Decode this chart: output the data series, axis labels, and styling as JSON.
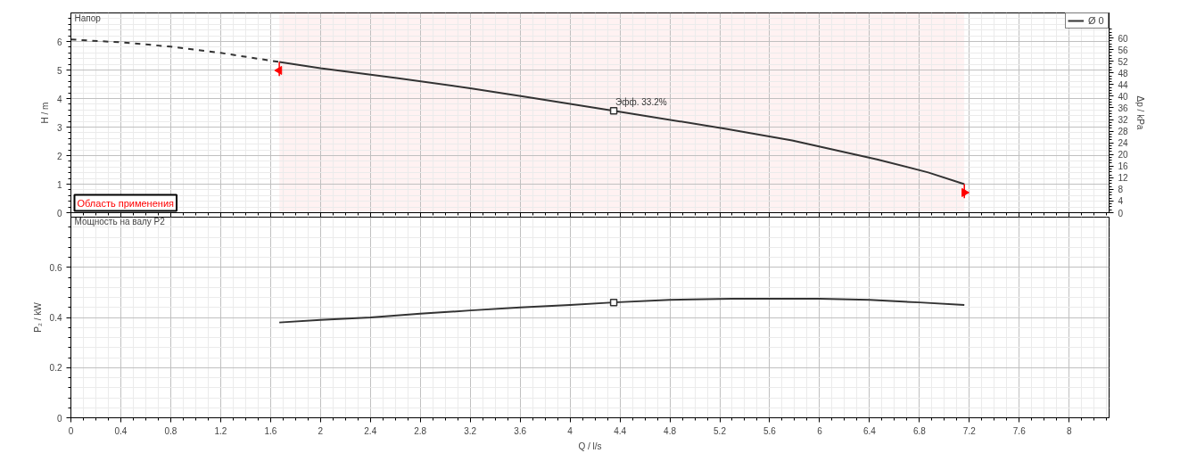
{
  "chart_data": [
    {
      "type": "line",
      "title": "Напор",
      "ylabel": "H / m",
      "y2label": "Δp / kPa",
      "xlim": [
        0,
        8.32
      ],
      "ylim": [
        0,
        7
      ],
      "y2lim": [
        0,
        68.6
      ],
      "xticks": [
        0,
        0.4,
        0.8,
        1.2,
        1.6,
        2,
        2.4,
        2.8,
        3.2,
        3.6,
        4,
        4.4,
        4.8,
        5.2,
        5.6,
        6,
        6.4,
        6.8,
        7.2,
        7.6,
        8
      ],
      "yticks": [
        0,
        1,
        2,
        3,
        4,
        5,
        6
      ],
      "y2ticks": [
        0,
        4,
        8,
        12,
        16,
        20,
        24,
        28,
        32,
        36,
        40,
        44,
        48,
        52,
        56,
        60
      ],
      "tick_labels": "y",
      "grid": true,
      "legend": "top right",
      "series": [
        {
          "color": "#333333",
          "line_style": "dashed",
          "x": [
            0,
            0.4,
            0.8,
            1.2,
            1.67
          ],
          "values": [
            6.07,
            5.97,
            5.82,
            5.6,
            5.28
          ]
        },
        {
          "name": "Ø 0",
          "color": "#333333",
          "line_style": "solid",
          "x": [
            1.67,
            2,
            2.61,
            3.2,
            3.64,
            4.35,
            5.25,
            5.78,
            6.46,
            6.87,
            7.16
          ],
          "values": [
            5.28,
            5.06,
            4.72,
            4.36,
            4.06,
            3.57,
            2.94,
            2.53,
            1.87,
            1.41,
            1.0
          ]
        }
      ],
      "annotations": [
        {
          "text": "Эфф. 33.2%",
          "x": 4.35,
          "y": 3.57
        }
      ],
      "bands": [
        {
          "axis": "x",
          "from": 1.67,
          "to": 7.16,
          "label": "Область применения",
          "color": "#ff0000"
        }
      ]
    },
    {
      "type": "line",
      "title": "Мощность на валу P2",
      "ylabel": "P₂ / kW",
      "xlabel": "Q / l/s",
      "xlim": [
        0,
        8.32
      ],
      "ylim": [
        0,
        0.8
      ],
      "xticks": [
        0,
        0.4,
        0.8,
        1.2,
        1.6,
        2,
        2.4,
        2.8,
        3.2,
        3.6,
        4,
        4.4,
        4.8,
        5.2,
        5.6,
        6,
        6.4,
        6.8,
        7.2,
        7.6,
        8
      ],
      "yticks": [
        0,
        0.2,
        0.4,
        0.6
      ],
      "grid": true,
      "series": [
        {
          "color": "#333333",
          "line_style": "solid",
          "x": [
            1.67,
            2,
            2.4,
            2.8,
            3.2,
            3.6,
            4,
            4.35,
            4.8,
            5.3,
            5.6,
            6,
            6.4,
            6.8,
            7.16
          ],
          "values": [
            0.38,
            0.39,
            0.4,
            0.415,
            0.428,
            0.44,
            0.45,
            0.46,
            0.47,
            0.475,
            0.475,
            0.475,
            0.47,
            0.46,
            0.45
          ]
        },
        {
          "type": "scatter",
          "marker": "square",
          "color": "#333333",
          "x": [
            4.35
          ],
          "values": [
            0.46
          ]
        }
      ]
    }
  ]
}
